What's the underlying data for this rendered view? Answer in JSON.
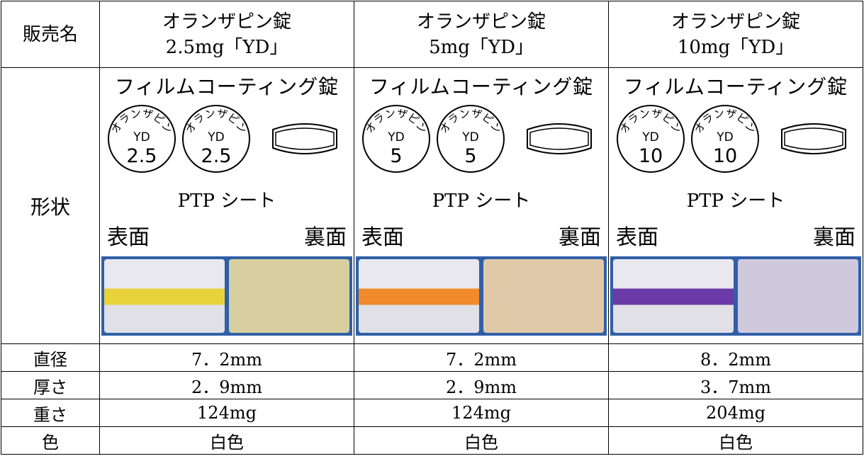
{
  "table": {
    "header": {
      "label": "販売名",
      "columns": [
        {
          "name": "オランザピン錠",
          "strength": "2.5mg「YD」"
        },
        {
          "name": "オランザピン錠",
          "strength": "5mg「YD」"
        },
        {
          "name": "オランザピン錠",
          "strength": "10mg「YD」"
        }
      ]
    },
    "shape": {
      "label": "形状",
      "columns": [
        {
          "coating": "フィルムコーティング錠",
          "imprint_arc": "オランザピン",
          "imprint_code": "YD",
          "imprint_strength": "2.5",
          "package": "PTP シート",
          "front": "表面",
          "back": "裏面"
        },
        {
          "coating": "フィルムコーティング錠",
          "imprint_arc": "オランザピン",
          "imprint_code": "YD",
          "imprint_strength": "5",
          "package": "PTP シート",
          "front": "表面",
          "back": "裏面"
        },
        {
          "coating": "フィルムコーティング錠",
          "imprint_arc": "オランザピン",
          "imprint_code": "YD",
          "imprint_strength": "10",
          "package": "PTP シート",
          "front": "表面",
          "back": "裏面"
        }
      ]
    },
    "rows": [
      {
        "label": "直径",
        "values": [
          "7．2mm",
          "7．2mm",
          "8．2mm"
        ]
      },
      {
        "label": "厚さ",
        "values": [
          "2．9mm",
          "2．9mm",
          "3．7mm"
        ]
      },
      {
        "label": "重さ",
        "values": [
          "124mg",
          "124mg",
          "204mg"
        ]
      },
      {
        "label": "色",
        "values": [
          "白色",
          "白色",
          "白色"
        ]
      }
    ]
  }
}
